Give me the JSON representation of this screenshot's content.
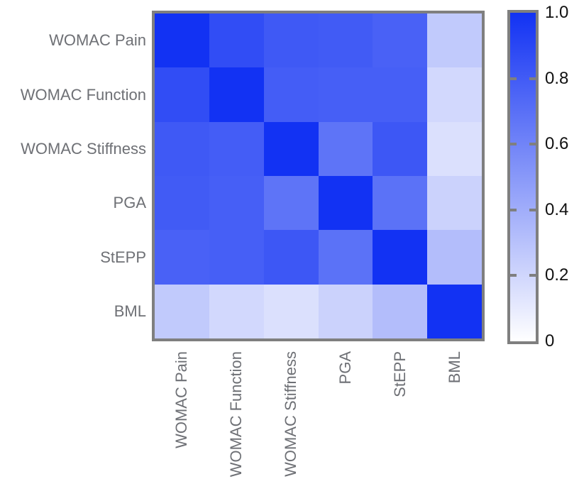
{
  "figure": {
    "type": "correlation-heatmap",
    "background": "#FFFFFF"
  },
  "chart_data": {
    "type": "heatmap",
    "title": "",
    "xlabel": "",
    "ylabel": "",
    "categories": [
      "WOMAC Pain",
      "WOMAC Function",
      "WOMAC Stiffness",
      "PGA",
      "StEPP",
      "BML"
    ],
    "matrix": [
      [
        1.0,
        0.87,
        0.81,
        0.8,
        0.77,
        0.26
      ],
      [
        0.87,
        1.0,
        0.79,
        0.78,
        0.78,
        0.19
      ],
      [
        0.81,
        0.79,
        1.0,
        0.68,
        0.82,
        0.15
      ],
      [
        0.8,
        0.78,
        0.68,
        1.0,
        0.69,
        0.22
      ],
      [
        0.77,
        0.78,
        0.82,
        0.69,
        1.0,
        0.32
      ],
      [
        0.26,
        0.19,
        0.15,
        0.22,
        0.32,
        1.0
      ]
    ],
    "colormap": {
      "low_color": "#FFFFFF",
      "high_color": "#1232F3",
      "vmin": 0,
      "vmax": 1
    },
    "colorbar": {
      "position": "right",
      "tick_labels": [
        "1.0",
        "0.8",
        "0.6",
        "0.4",
        "0.2",
        "0"
      ],
      "tick_values": [
        1.0,
        0.8,
        0.6,
        0.4,
        0.2,
        0
      ],
      "dash_values": [
        0.8,
        0.6,
        0.4,
        0.2
      ]
    },
    "grid": false,
    "legend_position": "none"
  },
  "colors": {
    "axis_border": "#7F7F7F",
    "label_gray": "#6E7075",
    "colorbar_text": "#111111"
  }
}
